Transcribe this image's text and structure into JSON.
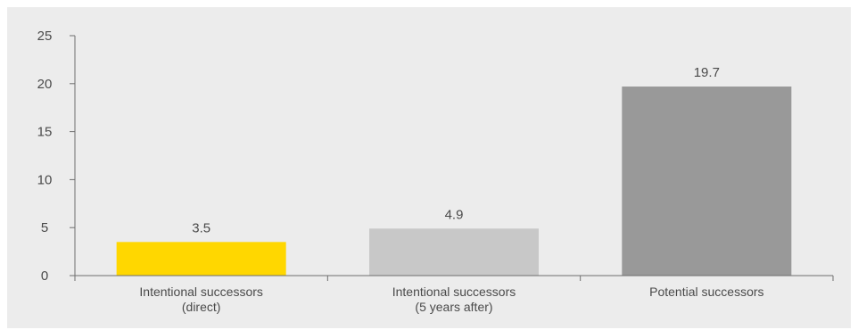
{
  "chart_data": {
    "type": "bar",
    "categories": [
      [
        "Intentional successors",
        "(direct)"
      ],
      [
        "Intentional successors",
        "(5 years after)"
      ],
      [
        "Potential successors"
      ]
    ],
    "values": [
      3.5,
      4.9,
      19.7
    ],
    "data_labels": [
      "3.5",
      "4.9",
      "19.7"
    ],
    "bar_colors": [
      "#ffd700",
      "#c8c8c8",
      "#999999"
    ],
    "ylim": [
      0,
      25
    ],
    "yticks": [
      0,
      5,
      10,
      15,
      20,
      25
    ],
    "title": "",
    "xlabel": "",
    "ylabel": "",
    "grid": false,
    "legend": false
  }
}
